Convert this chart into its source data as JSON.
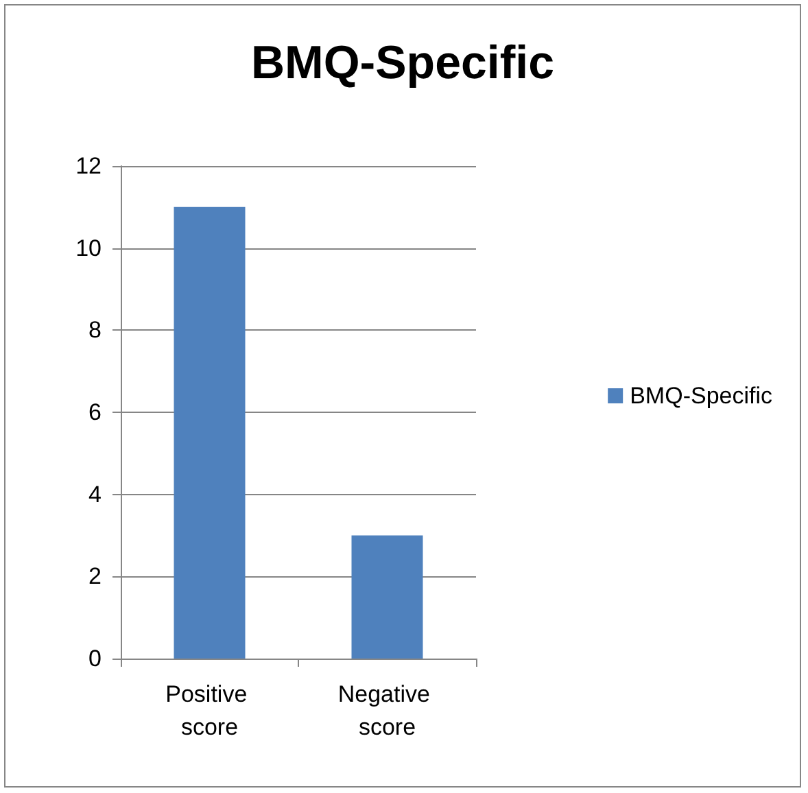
{
  "chart_data": {
    "type": "bar",
    "title": "BMQ-Specific",
    "categories": [
      "Positive score",
      "Negative score"
    ],
    "series": [
      {
        "name": "BMQ-Specific",
        "color": "#4f81bd",
        "values": [
          11,
          3
        ]
      }
    ],
    "ylim": [
      0,
      12
    ],
    "yticks": [
      0,
      2,
      4,
      6,
      8,
      10,
      12
    ],
    "grid": "y",
    "legend": "right"
  }
}
